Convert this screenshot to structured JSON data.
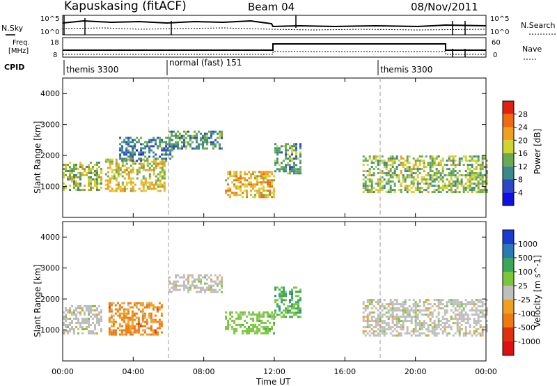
{
  "header": {
    "station": "Kapuskasing (fitACF)",
    "beam": "Beam 04",
    "date": "08/Nov/2011"
  },
  "status_panels": {
    "nsky_label": "N.Sky",
    "nsky_ticks": [
      "10^5",
      "10^0"
    ],
    "nsearch_label": "N.Search",
    "nsearch_ticks": [
      "10^5",
      "10^0"
    ],
    "freq_label_line1": "Freq.",
    "freq_label_line2": "[MHz]",
    "freq_ticks": [
      "18",
      "8"
    ],
    "nave_label": "Nave",
    "nave_ticks": [
      "60",
      "0"
    ],
    "cpid_label": "CPID",
    "cpid_segments": [
      {
        "label": "themis 3300",
        "start_hour": 0
      },
      {
        "label": "normal (fast) 151",
        "start_hour": 6
      },
      {
        "label": "themis 3300",
        "start_hour": 18
      }
    ]
  },
  "chart_data": [
    {
      "type": "heatmap",
      "title": "",
      "parameter": "Power",
      "ylabel": "Slant Range [km]",
      "colorbar_label": "Power [dB]",
      "colorbar_ticks": [
        4,
        8,
        12,
        16,
        20,
        24,
        28
      ],
      "colorbar_colors": [
        "#1010e0",
        "#2a48c8",
        "#3a8a8a",
        "#6aaa50",
        "#cfd430",
        "#f0a020",
        "#ef6a10",
        "#e02010"
      ],
      "ylim": [
        0,
        4500
      ],
      "yticks": [
        1000,
        2000,
        3000,
        4000
      ],
      "xlim_hours": [
        0,
        24
      ],
      "features": [
        {
          "t0": 0.0,
          "t1": 2.2,
          "r0": 900,
          "r1": 1800,
          "level": 0.55
        },
        {
          "t0": 2.4,
          "t1": 5.8,
          "r0": 850,
          "r1": 1900,
          "level": 0.65
        },
        {
          "t0": 3.2,
          "t1": 6.2,
          "r0": 1800,
          "r1": 2600,
          "level": 0.35
        },
        {
          "t0": 6.0,
          "t1": 9.0,
          "r0": 2200,
          "r1": 2800,
          "level": 0.4
        },
        {
          "t0": 9.2,
          "t1": 12.0,
          "r0": 650,
          "r1": 1500,
          "level": 0.75
        },
        {
          "t0": 12.0,
          "t1": 13.5,
          "r0": 1400,
          "r1": 2400,
          "level": 0.45
        },
        {
          "t0": 17.0,
          "t1": 24.0,
          "r0": 800,
          "r1": 2000,
          "level": 0.55
        }
      ]
    },
    {
      "type": "heatmap",
      "title": "",
      "parameter": "Velocity",
      "ylabel": "Slant Range [km]",
      "colorbar_label": "Velocity [m s^-1]",
      "colorbar_ticks": [
        1000,
        500,
        100,
        25,
        -25,
        -100,
        -500,
        -1000
      ],
      "colorbar_colors": [
        "#1a3ad0",
        "#2a7ab8",
        "#3aa85a",
        "#7ac83a",
        "#bebebe",
        "#f0a020",
        "#ef7a10",
        "#e03010",
        "#e01010"
      ],
      "ylim": [
        0,
        4500
      ],
      "yticks": [
        1000,
        2000,
        3000,
        4000
      ],
      "xlim_hours": [
        0,
        24
      ],
      "features": [
        {
          "t0": 0.0,
          "t1": 2.2,
          "r0": 900,
          "r1": 1800,
          "velocity": 0
        },
        {
          "t0": 2.6,
          "t1": 5.6,
          "r0": 850,
          "r1": 1900,
          "velocity": -300
        },
        {
          "t0": 6.0,
          "t1": 9.0,
          "r0": 2200,
          "r1": 2800,
          "velocity": 0
        },
        {
          "t0": 9.2,
          "t1": 12.0,
          "r0": 900,
          "r1": 1600,
          "velocity": 150
        },
        {
          "t0": 12.0,
          "t1": 13.5,
          "r0": 1400,
          "r1": 2400,
          "velocity": 300
        },
        {
          "t0": 17.0,
          "t1": 24.0,
          "r0": 800,
          "r1": 2000,
          "velocity": 0
        }
      ]
    }
  ],
  "x_axis": {
    "label": "Time UT",
    "ticks": [
      "00:00",
      "04:00",
      "08:00",
      "12:00",
      "16:00",
      "20:00",
      "00:00"
    ]
  }
}
